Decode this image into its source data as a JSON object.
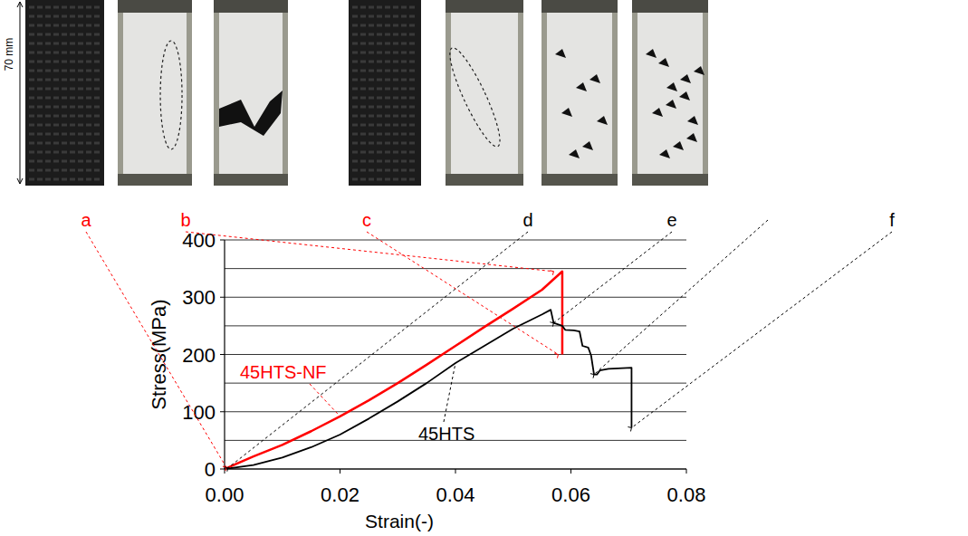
{
  "chart_data": {
    "type": "line",
    "xlabel": "Strain(-)",
    "ylabel": "Stress(MPa)",
    "xlim": [
      0,
      0.08
    ],
    "ylim": [
      0,
      400
    ],
    "xticks": [
      {
        "value": 0,
        "label": "0.00"
      },
      0.02,
      0.04,
      0.06,
      0.08
    ],
    "yticks": [
      0,
      100,
      200,
      300,
      400
    ],
    "y_minor_gridlines": [
      50,
      150,
      250,
      350
    ],
    "grid": true,
    "scale_label": "70 mm",
    "series": [
      {
        "name": "45HTS-NF",
        "color": "#ff0000",
        "x": [
          0,
          0.005,
          0.01,
          0.015,
          0.02,
          0.025,
          0.03,
          0.035,
          0.04,
          0.045,
          0.05,
          0.055,
          0.0585,
          0.0585
        ],
        "values": [
          0,
          22,
          42,
          66,
          92,
          120,
          150,
          182,
          215,
          248,
          280,
          313,
          345,
          200
        ]
      },
      {
        "name": "45HTS",
        "color": "#000000",
        "x": [
          0,
          0.005,
          0.01,
          0.015,
          0.02,
          0.025,
          0.03,
          0.035,
          0.04,
          0.045,
          0.05,
          0.055,
          0.0565,
          0.057,
          0.0585,
          0.059,
          0.0605,
          0.0615,
          0.062,
          0.063,
          0.0635,
          0.064,
          0.0645,
          0.065,
          0.0665,
          0.0705,
          0.0705
        ],
        "values": [
          0,
          7,
          20,
          38,
          60,
          88,
          118,
          150,
          185,
          215,
          245,
          270,
          278,
          255,
          250,
          243,
          242,
          240,
          215,
          212,
          198,
          165,
          165,
          172,
          175,
          177,
          72
        ]
      }
    ],
    "photos": [
      {
        "label": "a",
        "color": "#ff0000",
        "x": 0.0003,
        "y": 3
      },
      {
        "label": "b",
        "color": "#ff0000",
        "x": 0.057,
        "y": 345
      },
      {
        "label": "c",
        "color": "#ff0000",
        "x": 0.0578,
        "y": 200
      },
      {
        "label": "d",
        "color": "#000000",
        "x": 0.0006,
        "y": 2
      },
      {
        "label": "e",
        "color": "#000000",
        "x": 0.057,
        "y": 255
      },
      {
        "label": null,
        "color": "#000000",
        "x": 0.064,
        "y": 165
      },
      {
        "label": "f",
        "color": "#000000",
        "x": 0.0705,
        "y": 72
      }
    ]
  }
}
